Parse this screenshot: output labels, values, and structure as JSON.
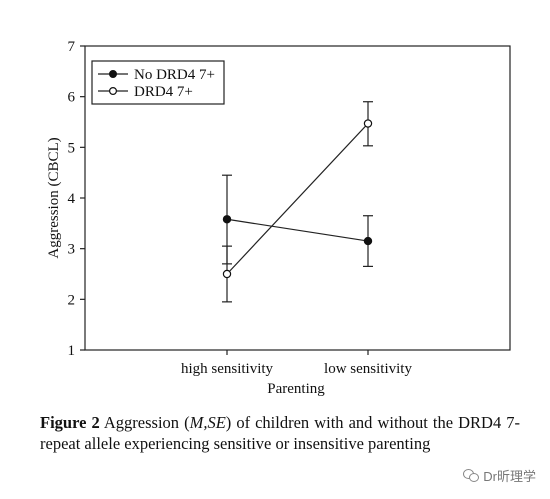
{
  "chart_data": {
    "type": "line",
    "ylabel": "Aggression (CBCL)",
    "xlabel": "Parenting",
    "categories": [
      "high sensitivity",
      "low sensitivity"
    ],
    "ylim": [
      1,
      7
    ],
    "yticks": [
      "1",
      "2",
      "3",
      "4",
      "5",
      "6",
      "7"
    ],
    "legend_position": "top-left",
    "grid": false,
    "series": [
      {
        "name": "No DRD4 7+",
        "marker": "filled-circle",
        "values": [
          3.58,
          3.15
        ],
        "error_low": [
          2.7,
          2.65
        ],
        "error_high": [
          4.45,
          3.65
        ]
      },
      {
        "name": "DRD4 7+",
        "marker": "open-circle",
        "values": [
          2.5,
          5.47
        ],
        "error_low": [
          1.95,
          5.03
        ],
        "error_high": [
          3.05,
          5.9
        ]
      }
    ]
  },
  "caption": {
    "label": "Figure 2",
    "text_before": " Aggression (",
    "stat": "M,SE",
    "text_after": ") of children with and without the DRD4 7-repeat allele experiencing sensitive or insensitive parenting"
  },
  "watermark": {
    "text": "Dr昕理学",
    "icon": "wechat-icon"
  }
}
